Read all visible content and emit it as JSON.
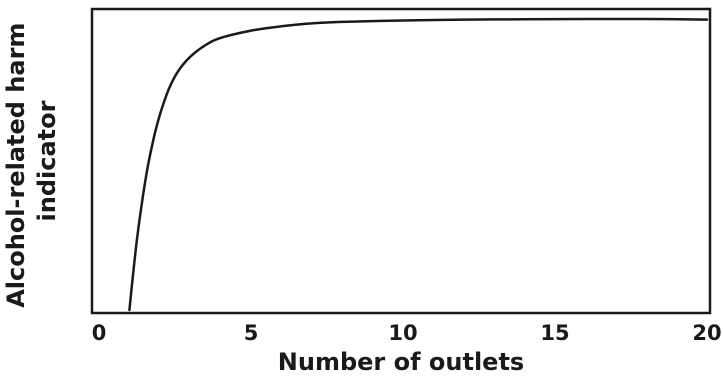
{
  "chart_data": {
    "type": "line",
    "title": "",
    "xlabel": "Number of outlets",
    "ylabel_lines": [
      "Alcohol-related harm",
      "indicator"
    ],
    "xlim": [
      0,
      20
    ],
    "x_ticks": [
      0,
      5,
      10,
      15,
      20
    ],
    "x_tick_labels": [
      "0",
      "5",
      "10",
      "15",
      "20"
    ],
    "y_ticks": [],
    "grid": false,
    "legend": "none",
    "line_color": "#1a1a1a",
    "series": [
      {
        "x": [
          1.0,
          1.2,
          1.4,
          1.6,
          1.8,
          2.0,
          2.3,
          2.6,
          3.0,
          3.5,
          4.0,
          5.0,
          6.0,
          7.0,
          8.0,
          10.0,
          12.0,
          14.0,
          16.0,
          18.0,
          20.0
        ],
        "y": [
          0.0,
          0.2,
          0.36,
          0.49,
          0.59,
          0.67,
          0.76,
          0.82,
          0.87,
          0.91,
          0.935,
          0.96,
          0.975,
          0.985,
          0.99,
          0.995,
          0.998,
          0.999,
          1.0,
          1.0,
          0.998
        ]
      }
    ]
  }
}
